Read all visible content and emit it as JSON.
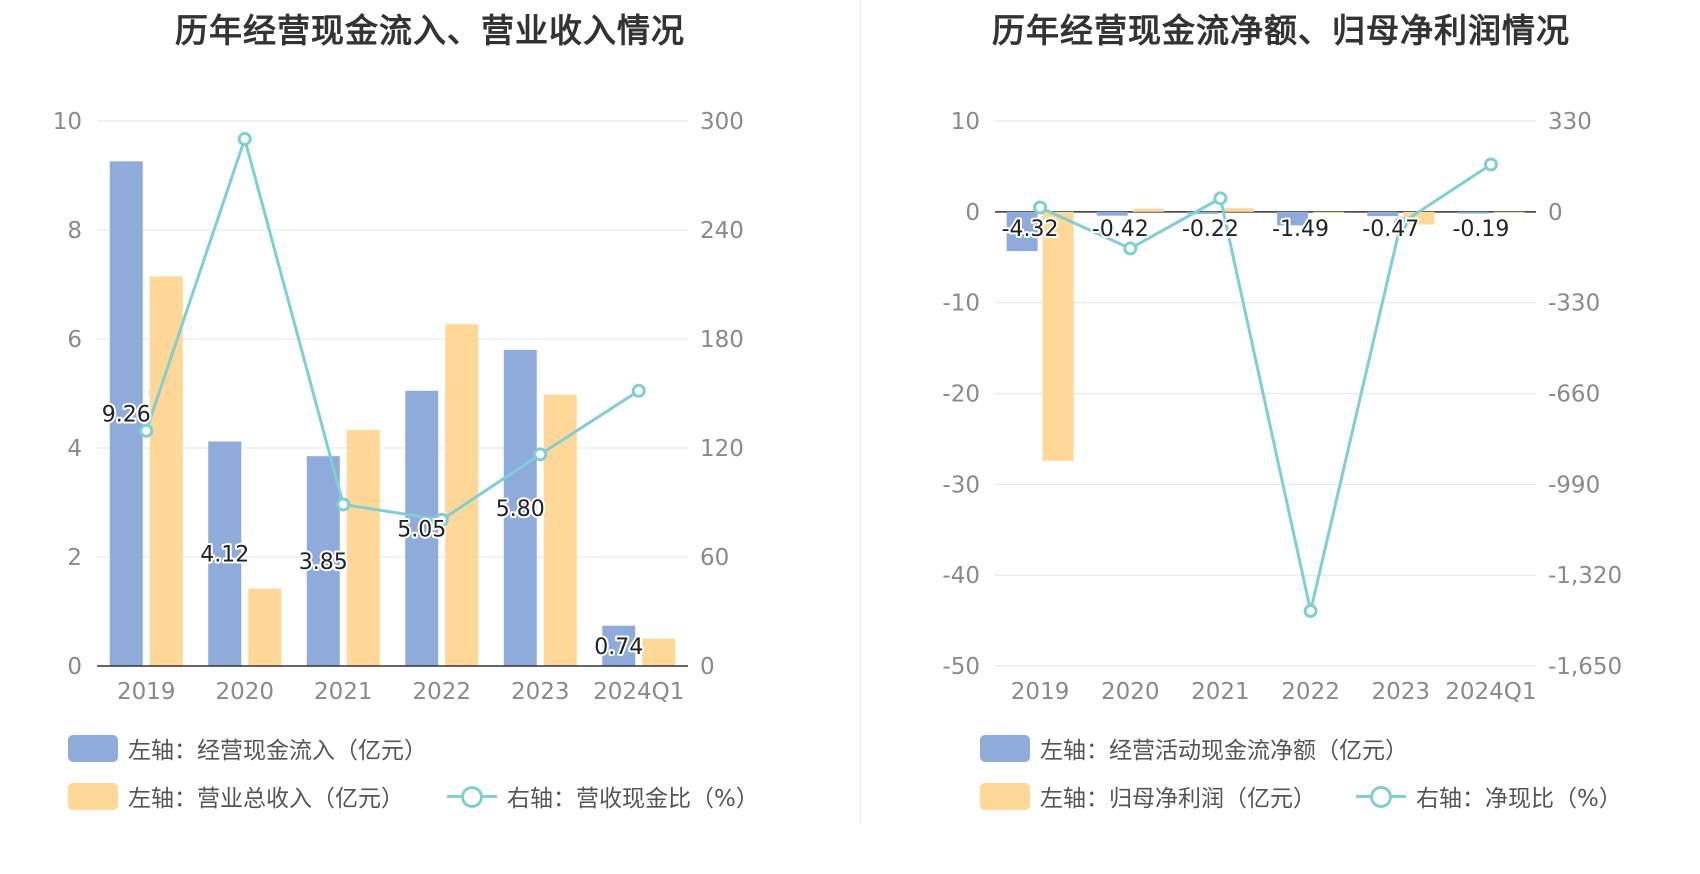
{
  "colors": {
    "blue": "#8eabdb",
    "orange": "#ffd797",
    "teal": "#7fd0d3",
    "grid": "#dfe4ee",
    "axis": "#333333"
  },
  "chart_data": [
    {
      "type": "bar",
      "title": "历年经营现金流入、营业收入情况",
      "categories": [
        "2019",
        "2020",
        "2021",
        "2022",
        "2023",
        "2024Q1"
      ],
      "y_left": {
        "min": 0,
        "max": 10,
        "ticks": [
          "0",
          "2",
          "4",
          "6",
          "8",
          "10"
        ]
      },
      "y_right": {
        "min": 0,
        "max": 300,
        "ticks": [
          "0",
          "60",
          "120",
          "180",
          "240",
          "300"
        ]
      },
      "series": [
        {
          "name": "左轴：经营现金流入（亿元）",
          "axis": "left",
          "kind": "bar",
          "color": "#8eabdb",
          "values": [
            9.26,
            4.12,
            3.85,
            5.05,
            5.8,
            0.74
          ],
          "labels": [
            "9.26",
            "4.12",
            "3.85",
            "5.05",
            "5.80",
            "0.74"
          ]
        },
        {
          "name": "左轴：营业总收入（亿元）",
          "axis": "left",
          "kind": "bar",
          "color": "#ffd797",
          "values": [
            7.15,
            1.42,
            4.33,
            6.27,
            4.98,
            0.5
          ]
        },
        {
          "name": "右轴：营收现金比（%）",
          "axis": "right",
          "kind": "line",
          "color": "#7fd0d3",
          "values": [
            129.5,
            290.1,
            88.9,
            80.5,
            116.5,
            151.5
          ]
        }
      ]
    },
    {
      "type": "bar",
      "title": "历年经营现金流净额、归母净利润情况",
      "categories": [
        "2019",
        "2020",
        "2021",
        "2022",
        "2023",
        "2024Q1"
      ],
      "y_left": {
        "min": -50,
        "max": 10,
        "ticks": [
          "-50",
          "-40",
          "-30",
          "-20",
          "-10",
          "0",
          "10"
        ]
      },
      "y_right": {
        "min": -1650,
        "max": 330,
        "ticks": [
          "-1,650",
          "-1,320",
          "-990",
          "-660",
          "-330",
          "0",
          "330"
        ]
      },
      "series": [
        {
          "name": "左轴：经营活动现金流净额（亿元）",
          "axis": "left",
          "kind": "bar",
          "color": "#8eabdb",
          "values": [
            -4.32,
            -0.42,
            -0.22,
            -1.49,
            -0.47,
            -0.19
          ],
          "labels": [
            "-4.32",
            "-0.42",
            "-0.22",
            "-1.49",
            "-0.47",
            "-0.19"
          ]
        },
        {
          "name": "左轴：归母净利润（亿元）",
          "axis": "left",
          "kind": "bar",
          "color": "#ffd797",
          "values": [
            -27.4,
            0.35,
            0.4,
            -0.1,
            -1.4,
            -0.05
          ]
        },
        {
          "name": "右轴：净现比（%）",
          "axis": "right",
          "kind": "line",
          "color": "#7fd0d3",
          "values": [
            15.8,
            -133,
            49,
            -1450,
            -43,
            172
          ]
        }
      ]
    }
  ]
}
